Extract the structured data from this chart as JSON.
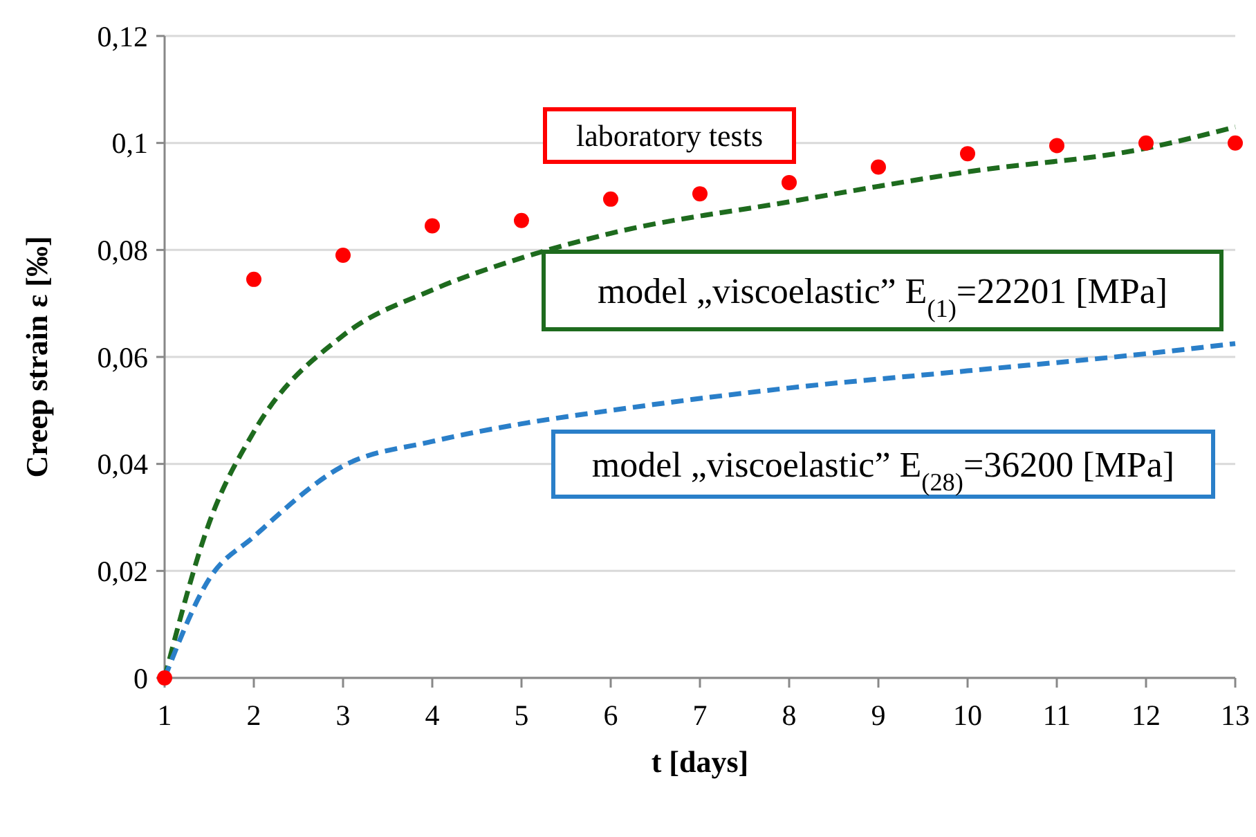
{
  "chart_data": {
    "type": "line",
    "xlabel": "t [days]",
    "ylabel": "Creep strain ε [‰]",
    "xlim": [
      1,
      13
    ],
    "xticks": [
      1,
      2,
      3,
      4,
      5,
      6,
      7,
      8,
      9,
      10,
      11,
      12,
      13
    ],
    "ylim": [
      0,
      0.12
    ],
    "yticks": [
      0,
      {
        "value": 0.02,
        "label": "0,02"
      },
      {
        "value": 0.04,
        "label": "0,04"
      },
      {
        "value": 0.06,
        "label": "0,06"
      },
      {
        "value": 0.08,
        "label": "0,08"
      },
      {
        "value": 0.1,
        "label": "0,1"
      },
      {
        "value": 0.12,
        "label": "0,12"
      }
    ],
    "grid": "y",
    "legend": false,
    "series": [
      {
        "name": "laboratory tests",
        "type": "scatter",
        "marker": "circle",
        "color": "#ff0000",
        "x": [
          1,
          2,
          3,
          4,
          5,
          6,
          7,
          8,
          9,
          10,
          11,
          12,
          13
        ],
        "values": [
          0,
          0.0745,
          0.079,
          0.0845,
          0.0855,
          0.0895,
          0.0905,
          0.0926,
          0.0955,
          0.098,
          0.0995,
          0.1,
          0.1
        ]
      },
      {
        "name": "model „viscoelastic” E$_{(1)}$=22201 [MPa]",
        "line_style": "dashed",
        "marker": "none",
        "color": "#1e6b1e",
        "x": [
          1,
          1.5,
          2,
          3,
          4,
          5,
          6,
          8,
          10,
          12,
          13
        ],
        "values": [
          0,
          0.029,
          0.046,
          0.064,
          0.0725,
          0.0785,
          0.0831,
          0.089,
          0.0946,
          0.099,
          0.103
        ]
      },
      {
        "name": "model „viscoelastic” E$_{(28)}$=36200 [MPa]",
        "line_style": "dashed",
        "marker": "none",
        "color": "#2a7fc9",
        "x": [
          1,
          1.5,
          2,
          3,
          4,
          5,
          6,
          8,
          10,
          12,
          13
        ],
        "values": [
          0,
          0.0185,
          0.0264,
          0.0396,
          0.0442,
          0.0475,
          0.05,
          0.0542,
          0.0574,
          0.0606,
          0.0625
        ]
      }
    ]
  }
}
